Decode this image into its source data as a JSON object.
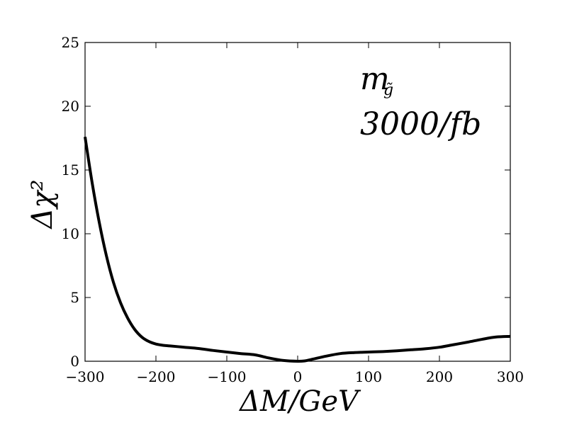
{
  "chart_data": {
    "type": "line",
    "xlabel": "ΔM/GeV",
    "ylabel": "Δχ²",
    "xlim": [
      -300,
      300
    ],
    "ylim": [
      0,
      25
    ],
    "xticks": [
      -300,
      -200,
      -100,
      0,
      100,
      200,
      300
    ],
    "yticks": [
      0,
      5,
      10,
      15,
      20,
      25
    ],
    "xtick_labels": [
      "−300",
      "−200",
      "−100",
      "0",
      "100",
      "200",
      "300"
    ],
    "ytick_labels": [
      "0",
      "5",
      "10",
      "15",
      "20",
      "25"
    ],
    "grid": false,
    "annotation": {
      "label_main": "m",
      "label_sub": "g̃",
      "label_line2": "3000/fb"
    },
    "series": [
      {
        "color": "#000000",
        "x": [
          -300,
          -290,
          -280,
          -270,
          -260,
          -250,
          -240,
          -230,
          -220,
          -210,
          -200,
          -190,
          -180,
          -160,
          -140,
          -120,
          -100,
          -80,
          -60,
          -40,
          -20,
          0,
          10,
          20,
          40,
          60,
          80,
          100,
          120,
          140,
          160,
          180,
          200,
          220,
          240,
          260,
          280,
          300
        ],
        "y": [
          17.6,
          14.0,
          10.9,
          8.3,
          6.2,
          4.6,
          3.4,
          2.5,
          1.9,
          1.55,
          1.35,
          1.25,
          1.2,
          1.1,
          1.0,
          0.85,
          0.72,
          0.6,
          0.5,
          0.25,
          0.06,
          0.0,
          0.03,
          0.15,
          0.4,
          0.6,
          0.68,
          0.72,
          0.76,
          0.82,
          0.9,
          0.98,
          1.1,
          1.3,
          1.5,
          1.72,
          1.9,
          1.95
        ]
      }
    ]
  }
}
